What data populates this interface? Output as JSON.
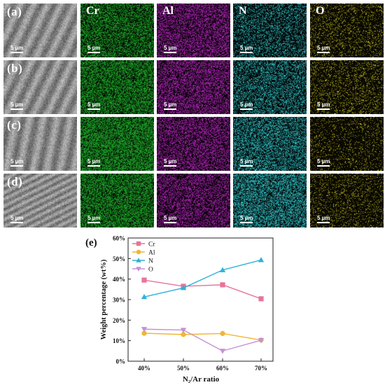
{
  "panel_grid": {
    "row_labels": [
      "(a)",
      "(b)",
      "(c)",
      "(d)"
    ],
    "column_labels": [
      "",
      "Cr",
      "Al",
      "N",
      "O"
    ],
    "scale_bar_label": "5 µm",
    "column_kinds": [
      "sem-micrograph",
      "cr-map",
      "al-map",
      "n-map",
      "o-map"
    ],
    "map_colors": {
      "sem": "#8e8e8e",
      "cr": "#1fae2a",
      "al": "#b026b8",
      "n": "#33c4c8",
      "o": "#c8c020"
    }
  },
  "chart_data": {
    "type": "line",
    "panel_label": "(e)",
    "categories": [
      "40%",
      "50%",
      "60%",
      "70%"
    ],
    "xlabel": "N₂/Ar ratio",
    "ylabel": "Weight percentage (wt%)",
    "yticks": [
      "0%",
      "10%",
      "20%",
      "30%",
      "40%",
      "50%",
      "60%"
    ],
    "ylim": [
      0,
      60
    ],
    "legend_position": "top-left",
    "series": [
      {
        "name": "Cr",
        "values": [
          39.5,
          36.5,
          37.2,
          30.4
        ],
        "color": "#e8749a",
        "marker": "square"
      },
      {
        "name": "Al",
        "values": [
          13.6,
          13.0,
          13.5,
          10.3
        ],
        "color": "#f2b533",
        "marker": "circle"
      },
      {
        "name": "N",
        "values": [
          31.3,
          35.7,
          44.4,
          49.3
        ],
        "color": "#2eb2d8",
        "marker": "triangle-up"
      },
      {
        "name": "O",
        "values": [
          15.6,
          15.2,
          5.0,
          10.2
        ],
        "color": "#c590d6",
        "marker": "triangle-down"
      }
    ]
  }
}
